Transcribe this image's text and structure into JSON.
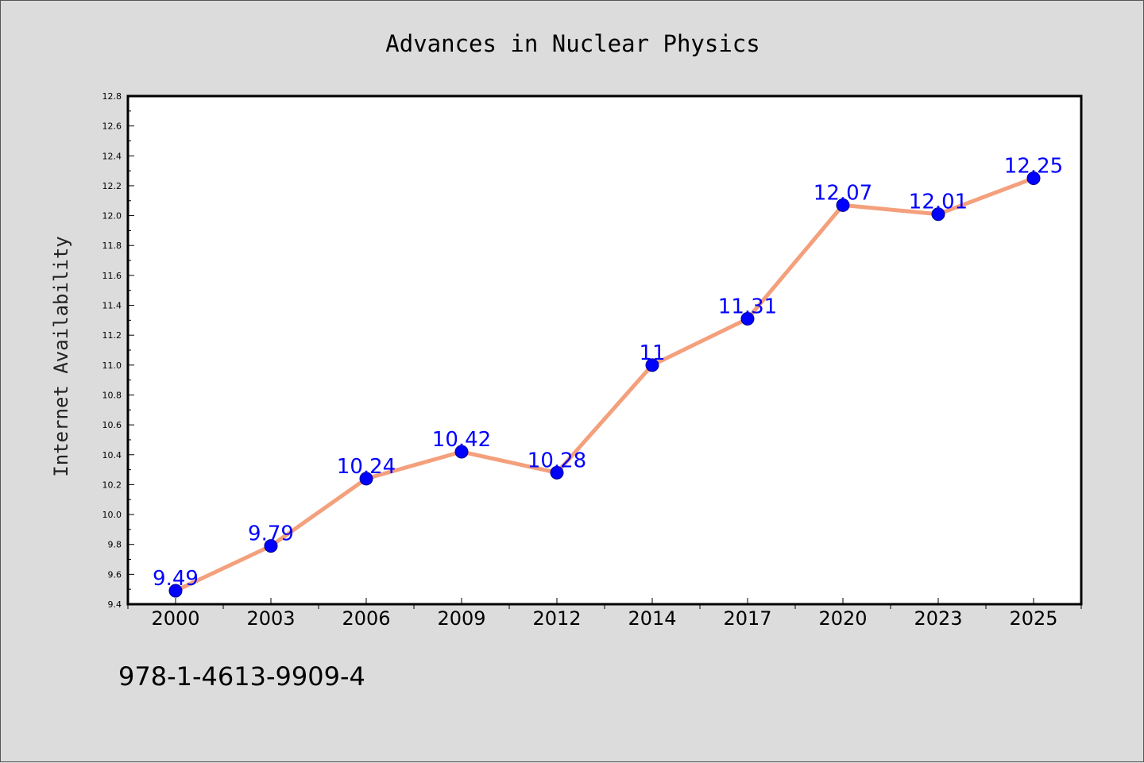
{
  "footer_text": "978-1-4613-9909-4",
  "colors": {
    "line": "#f4a07c",
    "marker": "#0000ff",
    "marker_edge": "#00008b",
    "data_label": "#0000ff",
    "plot_bg": "#ffffff",
    "page_bg": "#dcdcdc"
  },
  "chart_data": {
    "type": "line",
    "title": "Advances in Nuclear Physics",
    "xlabel": "",
    "ylabel": "Internet Availability",
    "categories": [
      "2000",
      "2003",
      "2006",
      "2009",
      "2012",
      "2014",
      "2017",
      "2020",
      "2023",
      "2025"
    ],
    "series": [
      {
        "values": [
          9.49,
          9.79,
          10.24,
          10.42,
          10.28,
          11,
          11.31,
          12.07,
          12.01,
          12.25
        ],
        "data_labels": [
          "9.49",
          "9.79",
          "10.24",
          "10.42",
          "10.28",
          "11",
          "11.31",
          "12.07",
          "12.01",
          "12.25"
        ]
      }
    ],
    "ylim": [
      9.4,
      12.8
    ],
    "yticks": [
      "9.4",
      "9.6",
      "9.8",
      "10.0",
      "10.2",
      "10.4",
      "10.6",
      "10.8",
      "11.0",
      "11.2",
      "11.4",
      "11.6",
      "11.8",
      "12.0",
      "12.2",
      "12.4",
      "12.6",
      "12.8"
    ],
    "grid": false,
    "legend": "none"
  }
}
